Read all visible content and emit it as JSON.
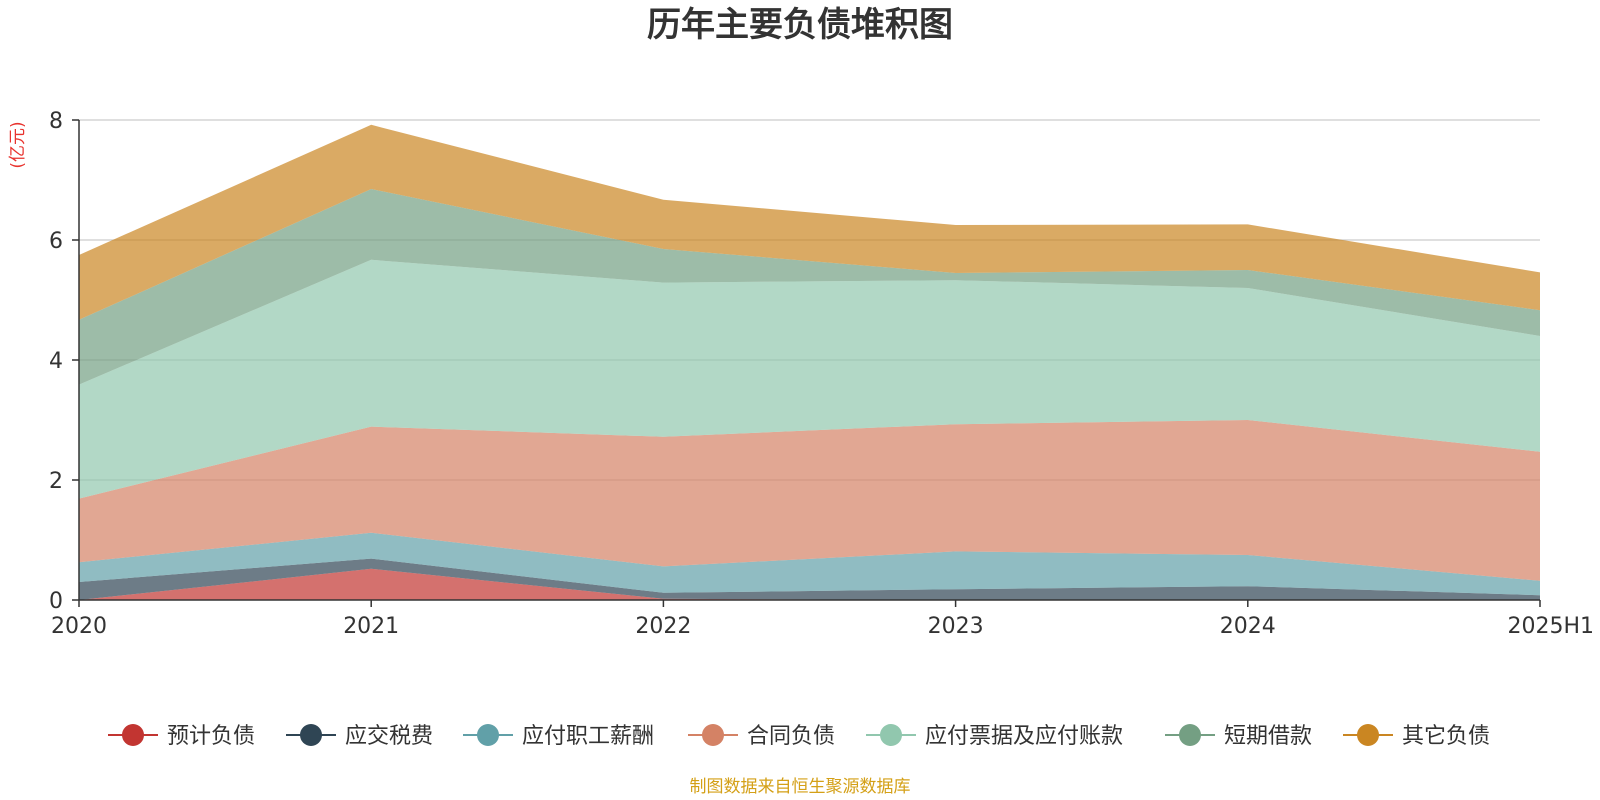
{
  "chart_data": {
    "type": "area",
    "title": "历年主要负债堆积图",
    "unit": "(亿元)",
    "source": "制图数据来自恒生聚源数据库",
    "categories": [
      "2020",
      "2021",
      "2022",
      "2023",
      "2024",
      "2025H1"
    ],
    "ylim": [
      0,
      8
    ],
    "yticks": [
      "0",
      "2",
      "4",
      "6",
      "8"
    ],
    "stacked": true,
    "grid": true,
    "legend_position": "bottom",
    "colors": {
      "unit": "#e8332e",
      "source": "#d4a017",
      "grid": "#cccccc",
      "axis": "#333333"
    },
    "series": [
      {
        "name": "预计负债",
        "color": "#c23531",
        "values": [
          0.0,
          0.52,
          0.02,
          0.0,
          0.0,
          0.0
        ]
      },
      {
        "name": "应交税费",
        "color": "#2f4554",
        "values": [
          0.3,
          0.17,
          0.1,
          0.18,
          0.23,
          0.08
        ]
      },
      {
        "name": "应付职工薪酬",
        "color": "#61a0a8",
        "values": [
          0.33,
          0.43,
          0.44,
          0.63,
          0.52,
          0.24
        ]
      },
      {
        "name": "合同负债",
        "color": "#d48265",
        "values": [
          1.06,
          1.77,
          2.16,
          2.12,
          2.25,
          2.15
        ]
      },
      {
        "name": "应付票据及应付账款",
        "color": "#91c7ae",
        "values": [
          1.9,
          2.78,
          2.57,
          2.4,
          2.2,
          1.93
        ]
      },
      {
        "name": "短期借款",
        "color": "#749f83",
        "values": [
          1.08,
          1.18,
          0.56,
          0.12,
          0.3,
          0.43
        ]
      },
      {
        "name": "其它负债",
        "color": "#ca8622",
        "values": [
          1.08,
          1.07,
          0.82,
          0.8,
          0.76,
          0.63
        ]
      }
    ]
  }
}
